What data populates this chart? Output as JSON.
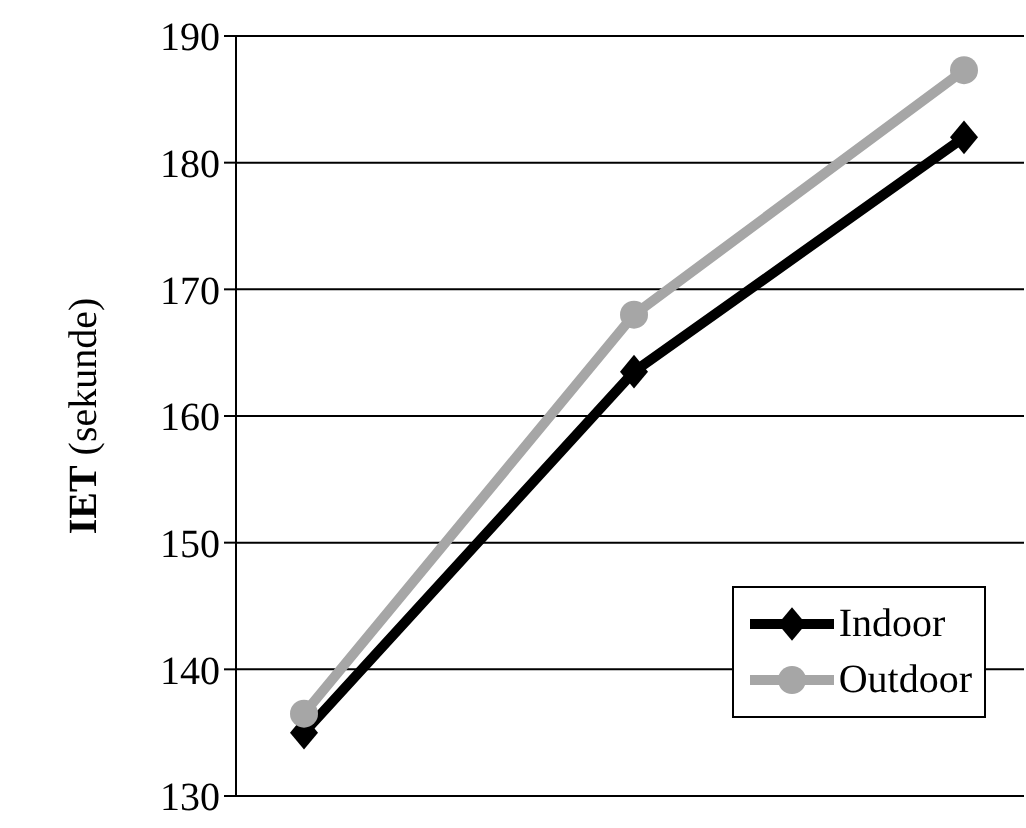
{
  "chart_data": {
    "type": "line",
    "ylabel": "IET (sekunde)",
    "categories": [
      null,
      null,
      null
    ],
    "series": [
      {
        "name": "Indoor",
        "color": "#000000",
        "marker": "diamond",
        "values": [
          135,
          163.5,
          182
        ]
      },
      {
        "name": "Outdoor",
        "color": "#a6a6a6",
        "marker": "circle",
        "values": [
          136.5,
          168,
          187.3
        ]
      }
    ],
    "ylim": [
      130,
      190
    ],
    "yticks": [
      130,
      140,
      150,
      160,
      170,
      180,
      190
    ],
    "grid": "y",
    "legend": "bottom right"
  }
}
